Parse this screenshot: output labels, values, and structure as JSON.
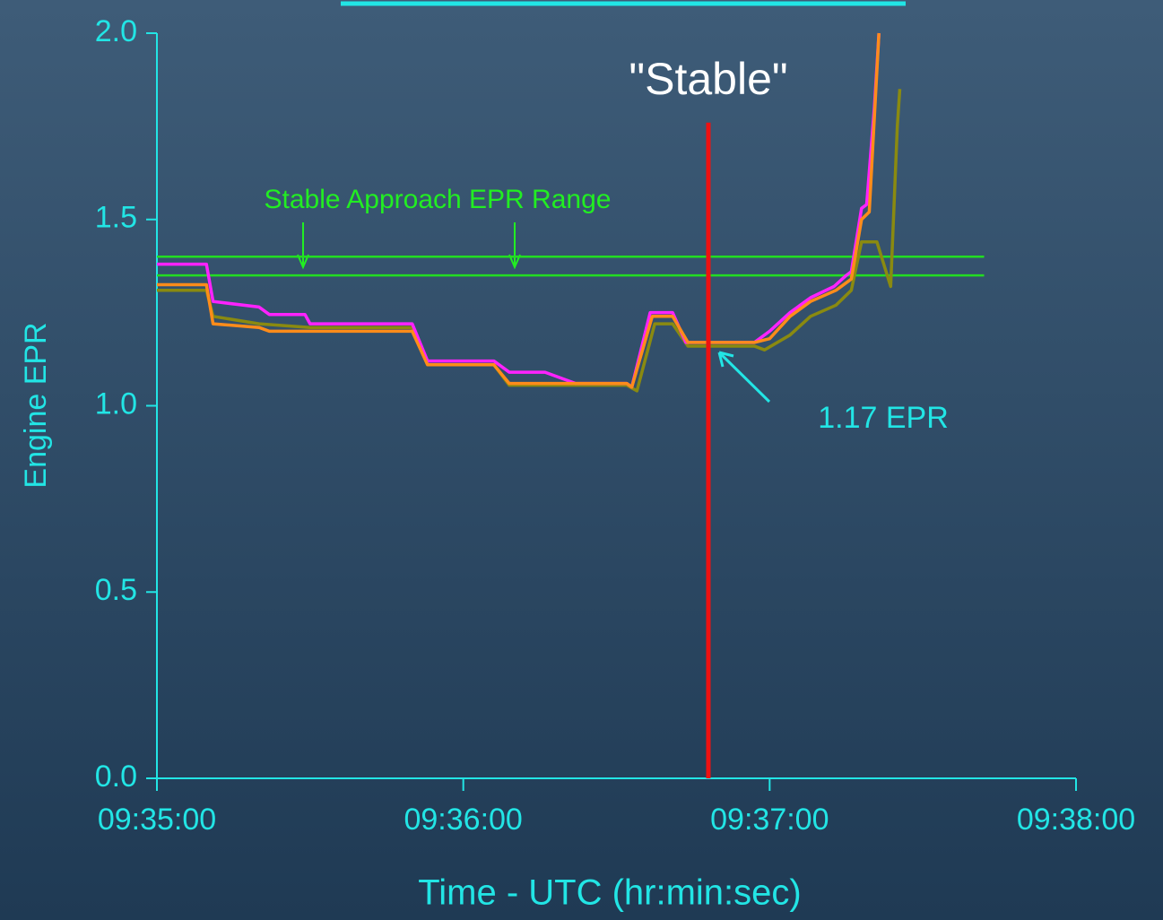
{
  "chart_data": {
    "type": "line",
    "y_label": "Engine EPR",
    "x_label": "Time - UTC (hr:min:sec)",
    "xlim": [
      34500,
      34680
    ],
    "xticks": [
      {
        "value": 34500,
        "label": "09:35:00"
      },
      {
        "value": 34560,
        "label": "09:36:00"
      },
      {
        "value": 34620,
        "label": "09:37:00"
      },
      {
        "value": 34680,
        "label": "09:38:00"
      }
    ],
    "ylim": [
      0,
      2
    ],
    "yticks": [
      {
        "value": 0,
        "label": "0.0"
      },
      0.5,
      {
        "value": 1,
        "label": "1.0"
      },
      1.5,
      {
        "value": 2,
        "label": "2.0"
      }
    ],
    "series": [
      {
        "color": "#ff22ff",
        "x": [
          34500,
          34509.7,
          34511,
          34520,
          34522,
          34529,
          34530,
          34550,
          34553,
          34566,
          34569,
          34576,
          34582,
          34592,
          34593,
          34596.6,
          34601,
          34603.6,
          34617,
          34620,
          34624,
          34628,
          34632.6,
          34635,
          34636,
          34638,
          34639,
          34640.5,
          34641.4
        ],
        "values": [
          1.38,
          1.38,
          1.28,
          1.265,
          1.245,
          1.245,
          1.22,
          1.22,
          1.12,
          1.12,
          1.09,
          1.09,
          1.06,
          1.06,
          1.05,
          1.25,
          1.25,
          1.17,
          1.17,
          1.2,
          1.25,
          1.29,
          1.32,
          1.35,
          1.36,
          1.53,
          1.54,
          1.8,
          2.0
        ]
      },
      {
        "color": "#ff8c1a",
        "x": [
          34500,
          34509.7,
          34511,
          34520,
          34522,
          34550,
          34553,
          34566,
          34569,
          34592,
          34593,
          34597,
          34601,
          34604,
          34617,
          34620,
          34624,
          34628,
          34633,
          34636,
          34638,
          34639.5,
          34641.4
        ],
        "values": [
          1.325,
          1.325,
          1.22,
          1.21,
          1.2,
          1.2,
          1.11,
          1.11,
          1.06,
          1.06,
          1.05,
          1.24,
          1.24,
          1.17,
          1.17,
          1.18,
          1.24,
          1.28,
          1.31,
          1.34,
          1.5,
          1.52,
          2.0
        ]
      },
      {
        "color": "#8a8a10",
        "x": [
          34500,
          34509.7,
          34511,
          34520,
          34530,
          34550,
          34553,
          34566,
          34569,
          34592,
          34594,
          34597.5,
          34601,
          34604,
          34617,
          34619,
          34624,
          34628,
          34633,
          34636,
          34638,
          34641,
          34643.7,
          34645,
          34645.5
        ],
        "values": [
          1.31,
          1.31,
          1.24,
          1.22,
          1.21,
          1.21,
          1.11,
          1.11,
          1.055,
          1.055,
          1.04,
          1.22,
          1.22,
          1.16,
          1.16,
          1.15,
          1.19,
          1.24,
          1.27,
          1.31,
          1.44,
          1.44,
          1.32,
          1.75,
          1.85
        ]
      }
    ],
    "reference_lines": [
      {
        "y": 1.4,
        "x": [
          34500,
          34662
        ],
        "color": "#22dd22"
      },
      {
        "y": 1.35,
        "x": [
          34500,
          34662
        ],
        "color": "#22dd22"
      }
    ],
    "band_label": "Stable Approach EPR Range",
    "marker": {
      "x": 34608,
      "y": [
        0,
        1.76
      ],
      "color": "#ee1111",
      "label": "\"Stable\""
    },
    "point_label": "1.17 EPR"
  }
}
